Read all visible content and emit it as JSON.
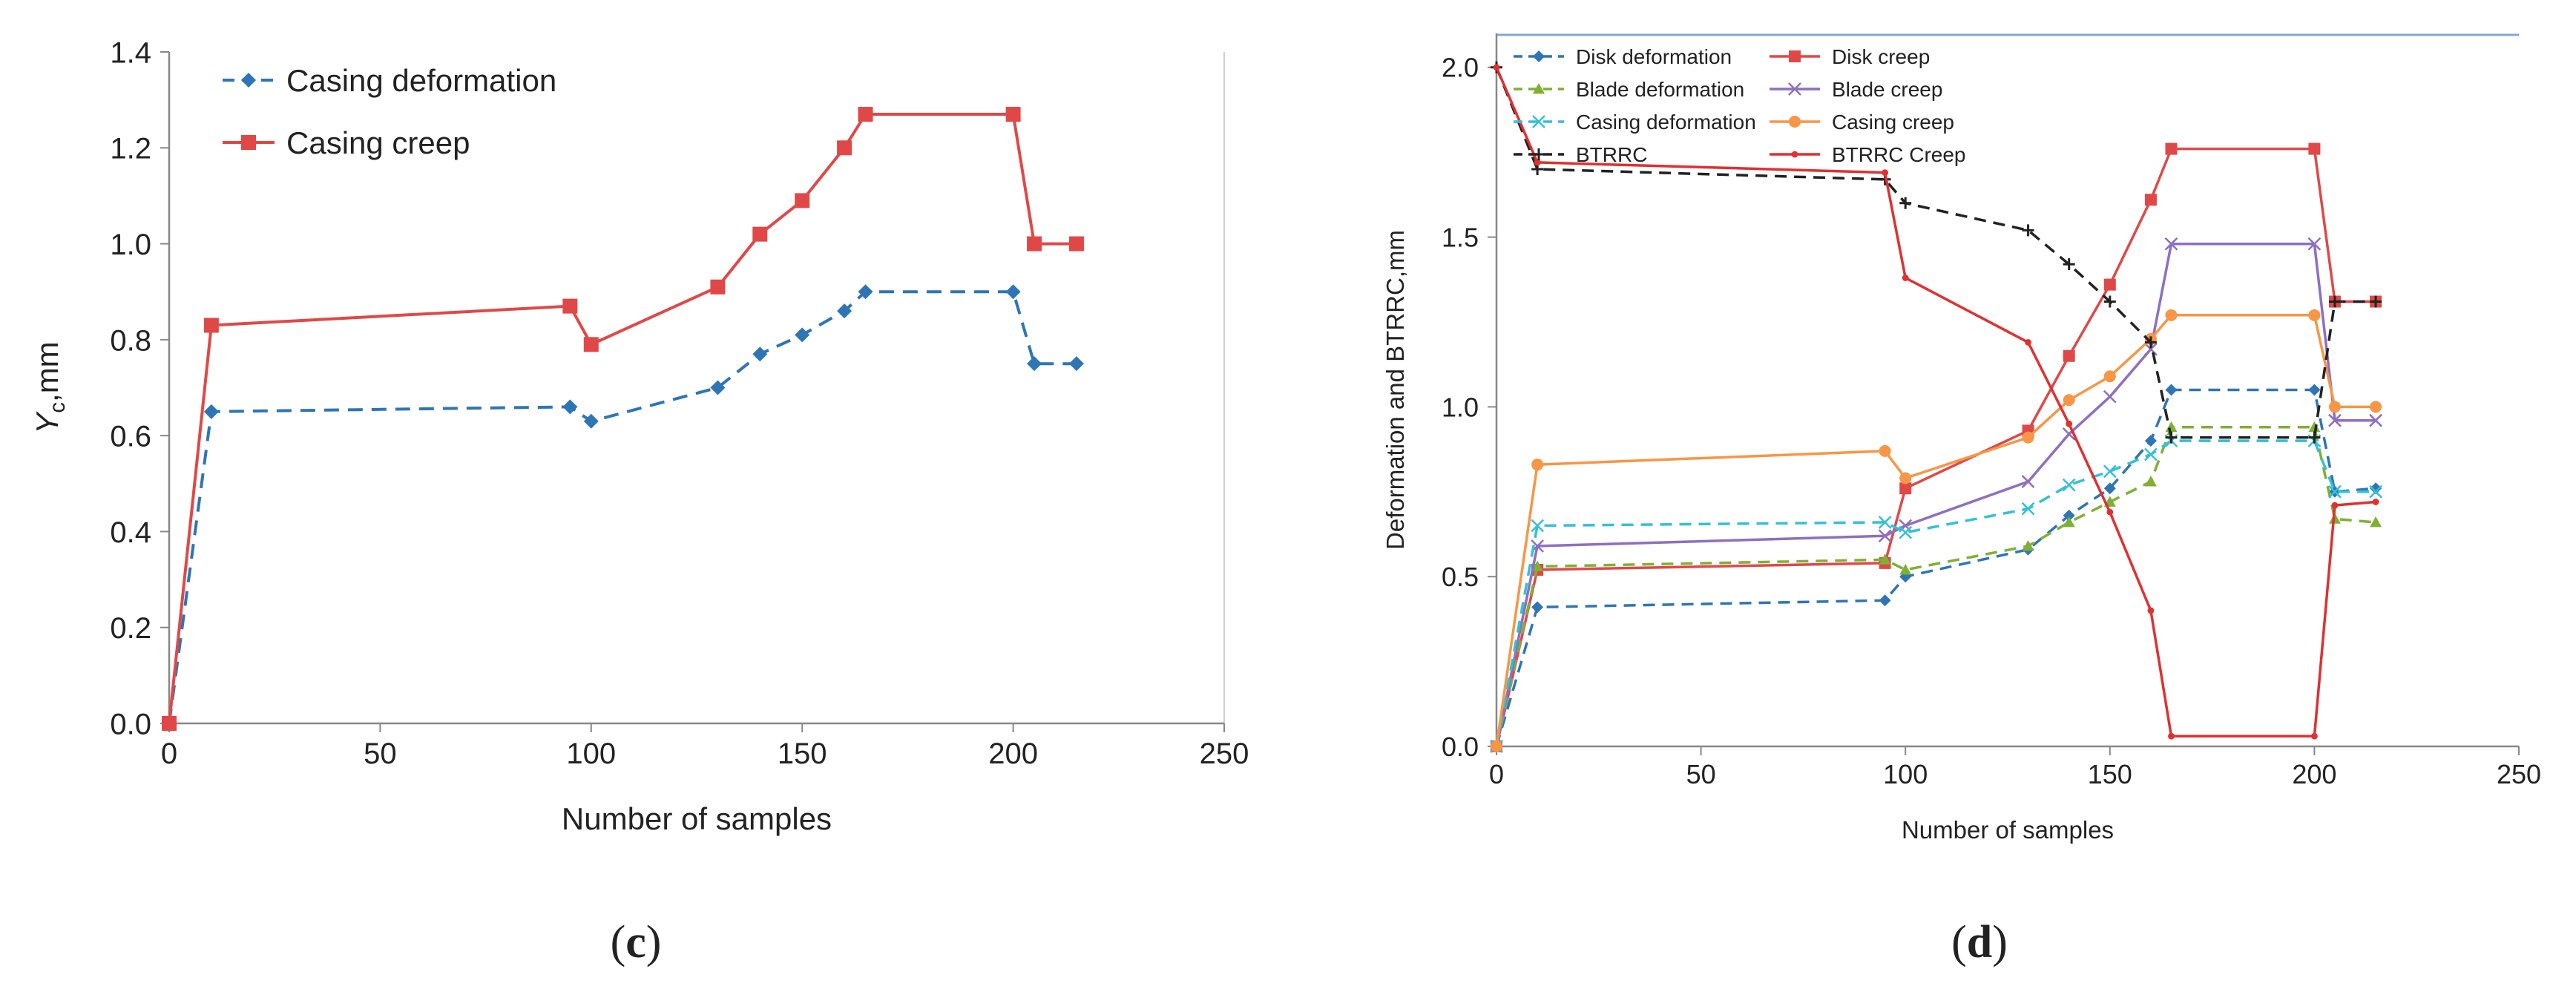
{
  "chart_data": [
    {
      "type": "line",
      "panel_label": "c",
      "xlabel": "Number of samples",
      "ylabel_main": "Y",
      "ylabel_sub": "c",
      "ylabel_suffix": ",mm",
      "xlim": [
        0,
        250
      ],
      "ylim": [
        0,
        1.4
      ],
      "xticks": [
        0,
        50,
        100,
        150,
        200,
        250
      ],
      "yticks": [
        0.0,
        0.2,
        0.4,
        0.6,
        0.8,
        1.0,
        1.2,
        1.4
      ],
      "ytick_decimals": 1,
      "legend": "top-left",
      "series": [
        {
          "name": "Casing deformation",
          "color": "#2e75b6",
          "dash": "dashed",
          "marker": "diamond",
          "x": [
            0,
            10,
            95,
            100,
            130,
            140,
            150,
            160,
            165,
            200,
            205,
            215
          ],
          "y": [
            0.0,
            0.65,
            0.66,
            0.63,
            0.7,
            0.77,
            0.81,
            0.86,
            0.9,
            0.9,
            0.75,
            0.75
          ]
        },
        {
          "name": "Casing creep",
          "color": "#e04848",
          "dash": "solid",
          "marker": "square",
          "x": [
            0,
            10,
            95,
            100,
            130,
            140,
            150,
            160,
            165,
            200,
            205,
            215
          ],
          "y": [
            0.0,
            0.83,
            0.87,
            0.79,
            0.91,
            1.02,
            1.09,
            1.2,
            1.27,
            1.27,
            1.0,
            1.0
          ]
        }
      ]
    },
    {
      "type": "line",
      "panel_label": "d",
      "xlabel": "Number of samples",
      "ylabel": "Deformation and BTRRC,mm",
      "xlim": [
        0,
        250
      ],
      "ylim": [
        0,
        2.1
      ],
      "xticks": [
        0,
        50,
        100,
        150,
        200,
        250
      ],
      "yticks": [
        0.0,
        0.5,
        1.0,
        1.5,
        2.0
      ],
      "ytick_decimals": 1,
      "legend": "top, two columns",
      "series": [
        {
          "name": "Disk deformation",
          "color": "#2e75b6",
          "dash": "dashed",
          "marker": "diamond",
          "x": [
            0,
            10,
            95,
            100,
            130,
            140,
            150,
            160,
            165,
            200,
            205,
            215
          ],
          "y": [
            0.0,
            0.41,
            0.43,
            0.5,
            0.58,
            0.68,
            0.76,
            0.9,
            1.05,
            1.05,
            0.75,
            0.76
          ]
        },
        {
          "name": "Disk creep",
          "color": "#e04848",
          "dash": "solid",
          "marker": "square",
          "x": [
            0,
            10,
            95,
            100,
            130,
            140,
            150,
            160,
            165,
            200,
            205,
            215
          ],
          "y": [
            0.0,
            0.52,
            0.54,
            0.76,
            0.93,
            1.15,
            1.36,
            1.61,
            1.76,
            1.76,
            1.31,
            1.31
          ]
        },
        {
          "name": "Blade deformation",
          "color": "#7fb034",
          "dash": "dashed",
          "marker": "triangle",
          "x": [
            0,
            10,
            95,
            100,
            130,
            140,
            150,
            160,
            165,
            200,
            205,
            215
          ],
          "y": [
            0.0,
            0.53,
            0.55,
            0.52,
            0.59,
            0.66,
            0.72,
            0.78,
            0.94,
            0.94,
            0.67,
            0.66
          ]
        },
        {
          "name": "Blade creep",
          "color": "#8e6fbf",
          "dash": "solid",
          "marker": "x",
          "x": [
            0,
            10,
            95,
            100,
            130,
            140,
            150,
            160,
            165,
            200,
            205,
            215
          ],
          "y": [
            0.0,
            0.59,
            0.62,
            0.65,
            0.78,
            0.92,
            1.03,
            1.17,
            1.48,
            1.48,
            0.96,
            0.96
          ]
        },
        {
          "name": "Casing deformation",
          "color": "#33c0d8",
          "dash": "dashed",
          "marker": "x",
          "x": [
            0,
            10,
            95,
            100,
            130,
            140,
            150,
            160,
            165,
            200,
            205,
            215
          ],
          "y": [
            0.0,
            0.65,
            0.66,
            0.63,
            0.7,
            0.77,
            0.81,
            0.86,
            0.9,
            0.9,
            0.75,
            0.75
          ]
        },
        {
          "name": "Casing creep",
          "color": "#f79646",
          "dash": "solid",
          "marker": "circle",
          "x": [
            0,
            10,
            95,
            100,
            130,
            140,
            150,
            160,
            165,
            200,
            205,
            215
          ],
          "y": [
            0.0,
            0.83,
            0.87,
            0.79,
            0.91,
            1.02,
            1.09,
            1.2,
            1.27,
            1.27,
            1.0,
            1.0
          ]
        },
        {
          "name": "BTRRC",
          "color": "#222222",
          "dash": "dashed",
          "marker": "plus",
          "x": [
            0,
            10,
            95,
            100,
            130,
            140,
            150,
            160,
            165,
            200,
            205,
            215
          ],
          "y": [
            2.0,
            1.7,
            1.67,
            1.6,
            1.52,
            1.42,
            1.31,
            1.19,
            0.91,
            0.91,
            1.31,
            1.31
          ]
        },
        {
          "name": "BTRRC Creep",
          "color": "#e03030",
          "dash": "solid",
          "marker": "dot",
          "x": [
            0,
            10,
            95,
            100,
            130,
            140,
            150,
            160,
            165,
            200,
            205,
            215
          ],
          "y": [
            2.0,
            1.72,
            1.69,
            1.38,
            1.19,
            0.95,
            0.69,
            0.4,
            0.03,
            0.03,
            0.71,
            0.72
          ]
        }
      ]
    }
  ]
}
